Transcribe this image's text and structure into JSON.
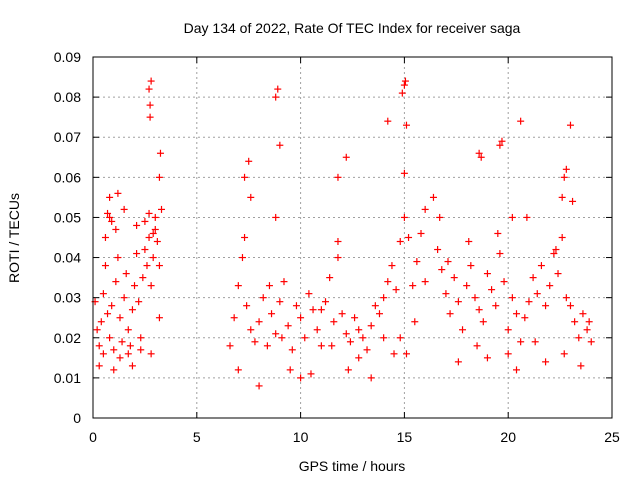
{
  "chart_data": {
    "type": "scatter",
    "title": "Day 134 of 2022, Rate Of TEC Index for receiver saga",
    "xlabel": "GPS time / hours",
    "ylabel": "ROTI / TECUs",
    "xlim": [
      0,
      25
    ],
    "ylim": [
      0,
      0.09
    ],
    "x_ticks": [
      "0",
      "5",
      "10",
      "15",
      "20",
      "25"
    ],
    "y_ticks": [
      "0",
      "0.01",
      "0.02",
      "0.03",
      "0.04",
      "0.05",
      "0.06",
      "0.07",
      "0.08",
      "0.09"
    ],
    "grid": true,
    "marker": "+",
    "color": "#ff0000",
    "series": [
      {
        "x": [
          0.1,
          0.2,
          0.3,
          0.4,
          0.5,
          0.6,
          0.7,
          0.8,
          0.9,
          1.0,
          1.1,
          1.2,
          1.3,
          1.4,
          1.5,
          1.6,
          1.7,
          1.8,
          1.9,
          2.0,
          2.1,
          2.2,
          2.3,
          2.4,
          2.5,
          2.6,
          2.7,
          2.8,
          2.9,
          3.0,
          3.1,
          3.2,
          3.3,
          0.3,
          0.5,
          0.6,
          0.8,
          1.0,
          1.1,
          1.3,
          1.5,
          1.7,
          1.9,
          2.1,
          2.3,
          2.5,
          2.7,
          2.8,
          2.9,
          3.0,
          3.2,
          0.7,
          0.8,
          0.9,
          1.2,
          2.7,
          2.75,
          2.8,
          2.75,
          3.2,
          3.25,
          6.6,
          6.8,
          7.0,
          7.2,
          7.4,
          7.6,
          7.8,
          8.0,
          8.2,
          8.4,
          8.6,
          8.8,
          9.0,
          9.2,
          9.4,
          9.6,
          9.8,
          10.0,
          10.2,
          10.4,
          10.6,
          10.8,
          11.0,
          11.2,
          11.4,
          11.6,
          11.8,
          12.0,
          12.2,
          12.4,
          12.6,
          12.8,
          13.0,
          13.2,
          13.4,
          13.6,
          13.8,
          14.0,
          14.2,
          14.4,
          14.6,
          14.8,
          15.0,
          15.2,
          15.4,
          15.6,
          15.8,
          16.0,
          7.0,
          7.3,
          7.6,
          8.0,
          8.5,
          8.8,
          9.1,
          9.5,
          10.0,
          10.5,
          11.0,
          11.5,
          11.8,
          12.3,
          12.8,
          13.4,
          14.0,
          14.5,
          14.8,
          15.1,
          15.5,
          16.0,
          7.3,
          7.5,
          8.8,
          8.9,
          9.0,
          11.8,
          12.2,
          14.2,
          14.9,
          15.0,
          15.05,
          15.1,
          15.0,
          16.4,
          16.6,
          16.8,
          17.0,
          17.2,
          17.4,
          17.6,
          17.8,
          18.0,
          18.2,
          18.4,
          18.6,
          18.8,
          19.0,
          19.2,
          19.4,
          19.6,
          19.8,
          20.0,
          20.2,
          20.4,
          20.6,
          20.8,
          21.0,
          21.2,
          21.4,
          21.6,
          21.8,
          22.0,
          22.2,
          22.4,
          22.6,
          22.8,
          23.0,
          23.2,
          23.4,
          23.6,
          23.8,
          24.0,
          16.7,
          17.1,
          17.6,
          18.1,
          18.5,
          19.0,
          19.5,
          20.0,
          20.4,
          20.9,
          21.3,
          21.8,
          22.3,
          22.7,
          23.1,
          23.5,
          23.9,
          18.6,
          18.7,
          19.6,
          19.7,
          20.2,
          20.6,
          22.7,
          22.8,
          23.0,
          22.6
        ],
        "y": [
          0.029,
          0.022,
          0.018,
          0.024,
          0.031,
          0.038,
          0.026,
          0.02,
          0.028,
          0.017,
          0.034,
          0.04,
          0.025,
          0.019,
          0.03,
          0.036,
          0.022,
          0.018,
          0.027,
          0.033,
          0.041,
          0.029,
          0.02,
          0.035,
          0.042,
          0.038,
          0.045,
          0.033,
          0.04,
          0.05,
          0.044,
          0.038,
          0.052,
          0.013,
          0.016,
          0.045,
          0.05,
          0.012,
          0.047,
          0.015,
          0.052,
          0.016,
          0.013,
          0.048,
          0.017,
          0.049,
          0.051,
          0.016,
          0.046,
          0.047,
          0.025,
          0.051,
          0.055,
          0.049,
          0.056,
          0.082,
          0.078,
          0.084,
          0.075,
          0.06,
          0.066,
          0.018,
          0.025,
          0.033,
          0.04,
          0.028,
          0.022,
          0.019,
          0.024,
          0.03,
          0.018,
          0.026,
          0.021,
          0.029,
          0.034,
          0.023,
          0.017,
          0.028,
          0.025,
          0.02,
          0.031,
          0.027,
          0.022,
          0.018,
          0.029,
          0.035,
          0.024,
          0.04,
          0.026,
          0.021,
          0.019,
          0.025,
          0.022,
          0.02,
          0.017,
          0.023,
          0.028,
          0.026,
          0.03,
          0.034,
          0.038,
          0.032,
          0.044,
          0.05,
          0.045,
          0.033,
          0.039,
          0.046,
          0.052,
          0.012,
          0.045,
          0.055,
          0.008,
          0.033,
          0.05,
          0.02,
          0.012,
          0.01,
          0.011,
          0.027,
          0.018,
          0.044,
          0.012,
          0.015,
          0.01,
          0.02,
          0.016,
          0.02,
          0.016,
          0.024,
          0.034,
          0.06,
          0.064,
          0.08,
          0.082,
          0.068,
          0.06,
          0.065,
          0.074,
          0.081,
          0.083,
          0.084,
          0.073,
          0.061,
          0.055,
          0.042,
          0.037,
          0.031,
          0.026,
          0.035,
          0.029,
          0.022,
          0.033,
          0.038,
          0.03,
          0.027,
          0.024,
          0.036,
          0.032,
          0.028,
          0.041,
          0.034,
          0.022,
          0.03,
          0.026,
          0.019,
          0.025,
          0.029,
          0.035,
          0.031,
          0.038,
          0.028,
          0.033,
          0.041,
          0.036,
          0.045,
          0.03,
          0.028,
          0.024,
          0.02,
          0.026,
          0.022,
          0.019,
          0.05,
          0.039,
          0.014,
          0.044,
          0.018,
          0.015,
          0.046,
          0.016,
          0.012,
          0.05,
          0.019,
          0.014,
          0.042,
          0.016,
          0.054,
          0.013,
          0.024,
          0.066,
          0.065,
          0.068,
          0.069,
          0.05,
          0.074,
          0.06,
          0.062,
          0.073,
          0.055
        ]
      }
    ]
  }
}
